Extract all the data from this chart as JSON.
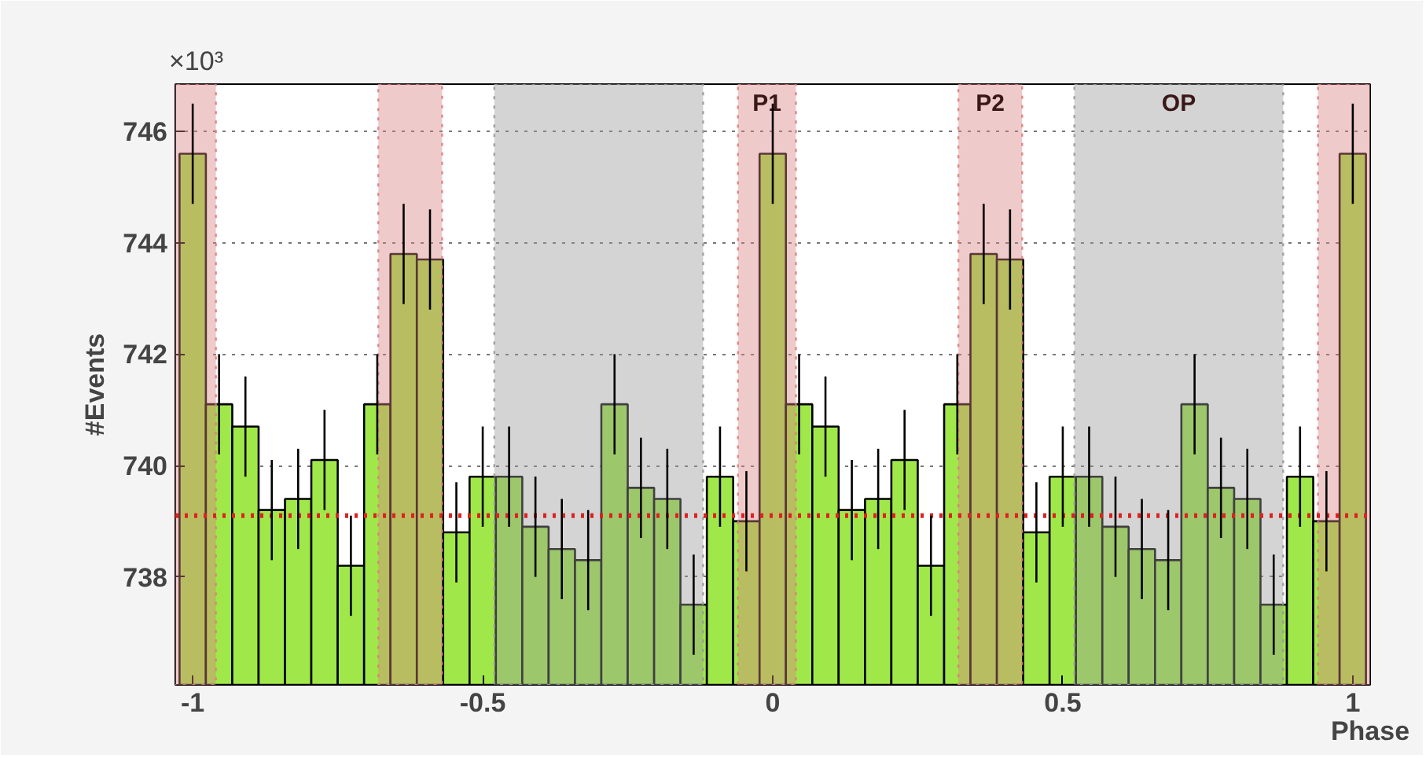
{
  "chart_data": {
    "type": "histogram",
    "ylabel": "#Events",
    "xlabel": "Phase",
    "annotations": [
      "×10³"
    ],
    "bins": [
      -1.0227,
      -0.9773,
      -0.9318,
      -0.8864,
      -0.8409,
      -0.7955,
      -0.75,
      -0.7045,
      -0.6591,
      -0.6136,
      -0.5682,
      -0.5227,
      -0.4773,
      -0.4318,
      -0.3864,
      -0.3409,
      -0.2955,
      -0.25,
      -0.2045,
      -0.1591,
      -0.1136,
      -0.0682,
      -0.0227,
      0.0227,
      0.0682,
      0.1136,
      0.1591,
      0.2045,
      0.25,
      0.2955,
      0.3409,
      0.3864,
      0.4318,
      0.4773,
      0.5227,
      0.5682,
      0.6136,
      0.6591,
      0.7045,
      0.75,
      0.7955,
      0.8409,
      0.8864,
      0.9318,
      0.9773,
      1.0227
    ],
    "values": [
      745.6,
      741.1,
      740.7,
      739.2,
      739.4,
      740.1,
      738.2,
      741.1,
      743.8,
      743.7,
      738.8,
      739.8,
      739.8,
      738.9,
      738.5,
      738.3,
      741.1,
      739.6,
      739.4,
      737.5,
      739.8,
      739.0,
      745.6,
      741.1,
      740.7,
      739.2,
      739.4,
      740.1,
      738.2,
      741.1,
      743.8,
      743.7,
      738.8,
      739.8,
      739.8,
      738.9,
      738.5,
      738.3,
      741.1,
      739.6,
      739.4,
      737.5,
      739.8,
      739.0,
      745.6
    ],
    "errors": [
      0.9,
      0.9,
      0.9,
      0.9,
      0.9,
      0.9,
      0.9,
      0.9,
      0.9,
      0.9,
      0.9,
      0.9,
      0.9,
      0.9,
      0.9,
      0.9,
      0.9,
      0.9,
      0.9,
      0.9,
      0.9,
      0.9,
      0.9,
      0.9,
      0.9,
      0.9,
      0.9,
      0.9,
      0.9,
      0.9,
      0.9,
      0.9,
      0.9,
      0.9,
      0.9,
      0.9,
      0.9,
      0.9,
      0.9,
      0.9,
      0.9,
      0.9,
      0.9,
      0.9,
      0.9
    ],
    "color": "#a0e84a",
    "xlim": [
      -1.03,
      1.03
    ],
    "xticks": [
      -1,
      -0.5,
      0,
      0.5,
      1
    ],
    "ylim": [
      736.06,
      746.85
    ],
    "yticks": [
      738,
      740,
      742,
      744,
      746
    ],
    "grid": "y",
    "ref_lines": [
      {
        "axis": "y",
        "value": 739.1,
        "color": "#e02020",
        "line_style": "dotted"
      }
    ],
    "bands": [
      {
        "axis": "x",
        "from": -1.06,
        "to": -0.96,
        "color": "#d88080"
      },
      {
        "axis": "x",
        "from": -0.68,
        "to": -0.57,
        "color": "#d88080"
      },
      {
        "axis": "x",
        "from": -0.48,
        "to": -0.12,
        "color": "#999999"
      },
      {
        "axis": "x",
        "from": -0.06,
        "to": 0.04,
        "label": "P1",
        "color": "#d88080"
      },
      {
        "axis": "x",
        "from": 0.32,
        "to": 0.43,
        "label": "P2",
        "color": "#d88080"
      },
      {
        "axis": "x",
        "from": 0.52,
        "to": 0.88,
        "label": "OP",
        "color": "#999999"
      },
      {
        "axis": "x",
        "from": 0.94,
        "to": 1.04,
        "color": "#d88080"
      }
    ]
  }
}
